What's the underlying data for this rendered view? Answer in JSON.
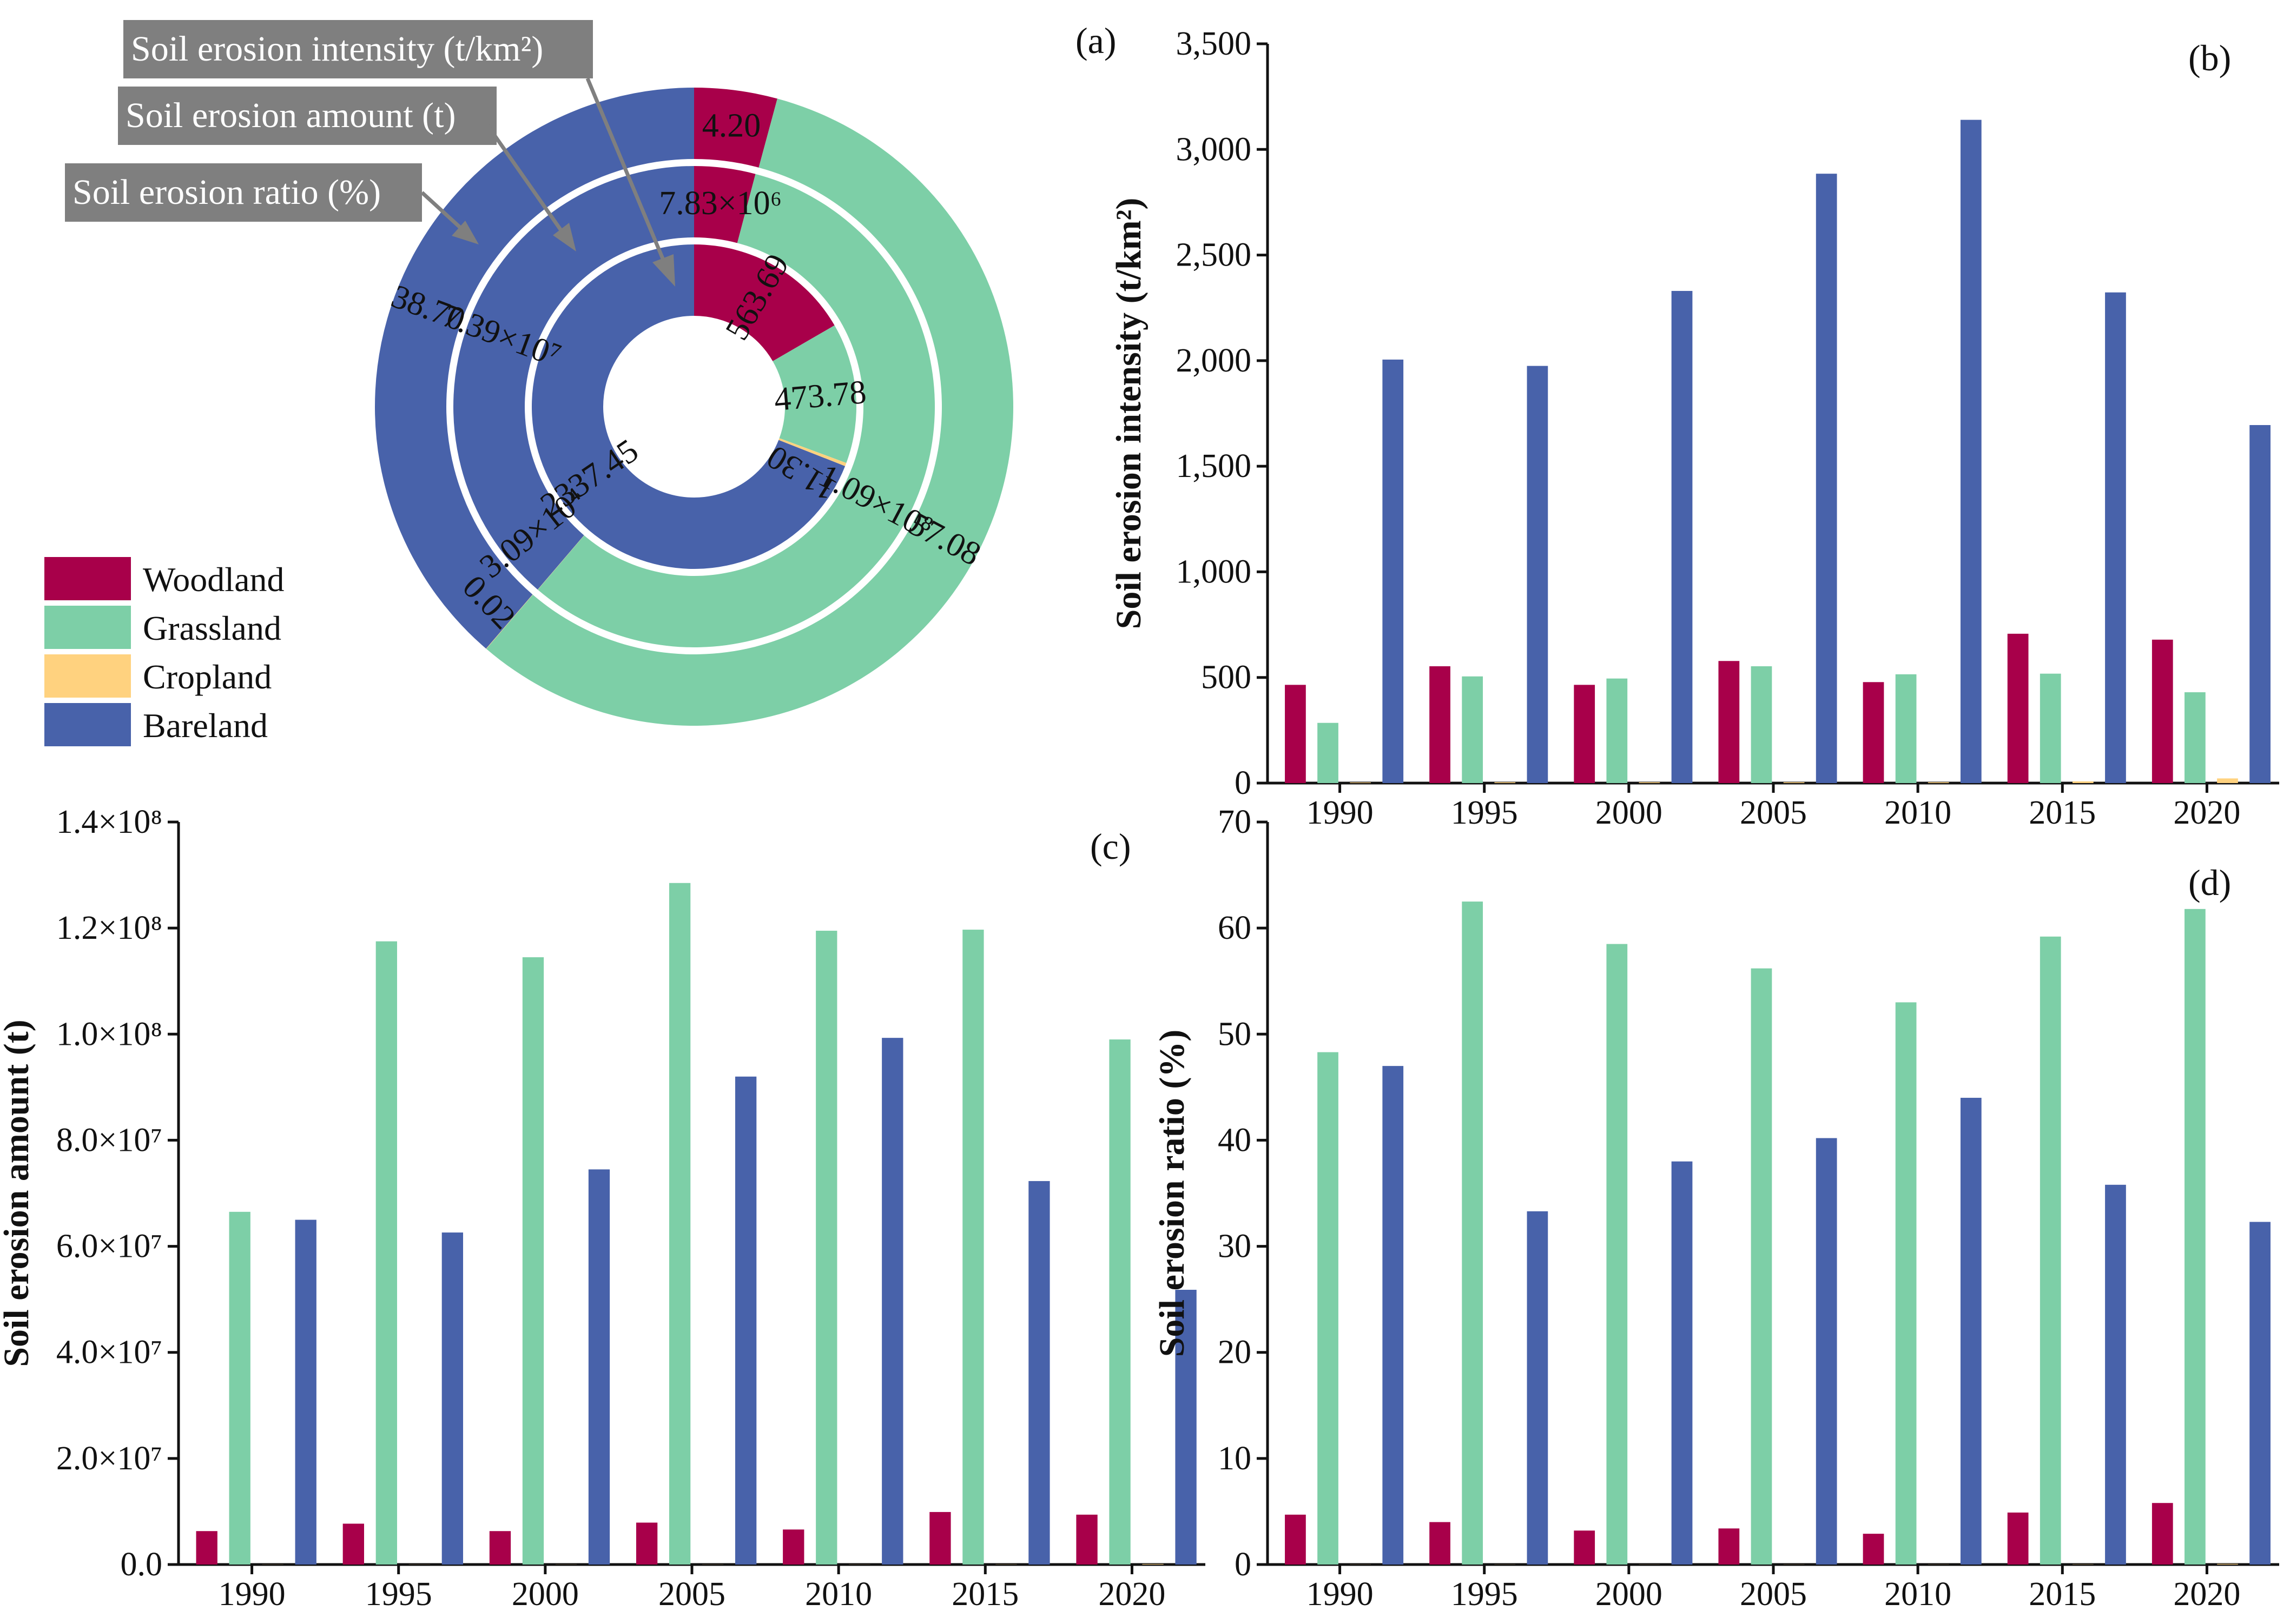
{
  "colors": {
    "Woodland": "#a8004a",
    "Grassland": "#7dcfa7",
    "Cropland": "#ffd27f",
    "Bareland": "#4862aa"
  },
  "legend": [
    "Woodland",
    "Grassland",
    "Cropland",
    "Bareland"
  ],
  "callouts": [
    "Soil erosion intensity (t/km²)",
    "Soil erosion amount (t)",
    "Soil erosion ratio (%)"
  ],
  "chart_data": [
    {
      "id": "a",
      "panel_label": "(a)",
      "type": "pie",
      "rings": [
        {
          "name": "Soil erosion ratio (%)",
          "slices": [
            {
              "category": "Woodland",
              "value": 4.2,
              "label": "4.20"
            },
            {
              "category": "Grassland",
              "value": 57.08,
              "label": "57.08"
            },
            {
              "category": "Cropland",
              "value": 0.02,
              "label": "0.02"
            },
            {
              "category": "Bareland",
              "value": 38.7,
              "label": "38.70"
            }
          ]
        },
        {
          "name": "Soil erosion amount (t)",
          "slices": [
            {
              "category": "Woodland",
              "value": 7830000,
              "label": "7.83×10⁶"
            },
            {
              "category": "Grassland",
              "value": 109000000,
              "label": "1.09×10⁸"
            },
            {
              "category": "Cropland",
              "value": 30900,
              "label": "3.09×10⁴"
            },
            {
              "category": "Bareland",
              "value": 73900000,
              "label": "7.39×10⁷"
            }
          ]
        },
        {
          "name": "Soil erosion intensity (t/km²)",
          "slices": [
            {
              "category": "Woodland",
              "value": 563.69,
              "label": "563.69"
            },
            {
              "category": "Grassland",
              "value": 473.78,
              "label": "473.78"
            },
            {
              "category": "Cropland",
              "value": 11.3,
              "label": "11.30"
            },
            {
              "category": "Bareland",
              "value": 2337.45,
              "label": "2337.45"
            }
          ]
        }
      ]
    },
    {
      "id": "b",
      "panel_label": "(b)",
      "type": "bar",
      "ylabel": "Soil erosion intensity (t/km²)",
      "ylim": [
        0,
        3500
      ],
      "yticks": [
        0,
        500,
        1000,
        1500,
        2000,
        2500,
        3000,
        3500
      ],
      "ytick_labels": [
        "0",
        "500",
        "1,000",
        "1,500",
        "2,000",
        "2,500",
        "3,000",
        "3,500"
      ],
      "categories": [
        "1990",
        "1995",
        "2000",
        "2005",
        "2010",
        "2015",
        "2020"
      ],
      "series": [
        {
          "name": "Woodland",
          "values": [
            465,
            553,
            465,
            578,
            478,
            707,
            679
          ]
        },
        {
          "name": "Grassland",
          "values": [
            285,
            505,
            495,
            553,
            515,
            518,
            430
          ]
        },
        {
          "name": "Cropland",
          "values": [
            3,
            4,
            4,
            4,
            4,
            8,
            22
          ]
        },
        {
          "name": "Bareland",
          "values": [
            2005,
            1975,
            2330,
            2885,
            3140,
            2323,
            1695
          ]
        }
      ]
    },
    {
      "id": "c",
      "panel_label": "(c)",
      "type": "bar",
      "ylabel": "Soil erosion amount (t)",
      "ylim": [
        0,
        140000000
      ],
      "yticks": [
        0,
        20000000,
        40000000,
        60000000,
        80000000,
        100000000,
        120000000,
        140000000
      ],
      "ytick_labels": [
        "0.0",
        "2.0×10⁷",
        "4.0×10⁷",
        "6.0×10⁷",
        "8.0×10⁷",
        "1.0×10⁸",
        "1.2×10⁸",
        "1.4×10⁸"
      ],
      "categories": [
        "1990",
        "1995",
        "2000",
        "2005",
        "2010",
        "2015",
        "2020"
      ],
      "series": [
        {
          "name": "Woodland",
          "values": [
            6300000,
            7700000,
            6300000,
            7900000,
            6600000,
            9900000,
            9400000
          ]
        },
        {
          "name": "Grassland",
          "values": [
            66500000,
            117500000,
            114500000,
            128500000,
            119500000,
            119700000,
            99000000
          ]
        },
        {
          "name": "Cropland",
          "values": [
            20000,
            20000,
            20000,
            20000,
            20000,
            30000,
            100000
          ]
        },
        {
          "name": "Bareland",
          "values": [
            65000000,
            62600000,
            74500000,
            92000000,
            99300000,
            72300000,
            51800000
          ]
        }
      ]
    },
    {
      "id": "d",
      "panel_label": "(d)",
      "type": "bar",
      "ylabel": "Soil erosion ratio (%)",
      "ylim": [
        0,
        70
      ],
      "yticks": [
        0,
        10,
        20,
        30,
        40,
        50,
        60,
        70
      ],
      "ytick_labels": [
        "0",
        "10",
        "20",
        "30",
        "40",
        "50",
        "60",
        "70"
      ],
      "categories": [
        "1990",
        "1995",
        "2000",
        "2005",
        "2010",
        "2015",
        "2020"
      ],
      "series": [
        {
          "name": "Woodland",
          "values": [
            4.7,
            4.0,
            3.2,
            3.4,
            2.9,
            4.9,
            5.8
          ]
        },
        {
          "name": "Grassland",
          "values": [
            48.3,
            62.5,
            58.5,
            56.2,
            53.0,
            59.2,
            61.8
          ]
        },
        {
          "name": "Cropland",
          "values": [
            0.01,
            0.01,
            0.01,
            0.01,
            0.01,
            0.02,
            0.06
          ]
        },
        {
          "name": "Bareland",
          "values": [
            47.0,
            33.3,
            38.0,
            40.2,
            44.0,
            35.8,
            32.3
          ]
        }
      ]
    }
  ]
}
